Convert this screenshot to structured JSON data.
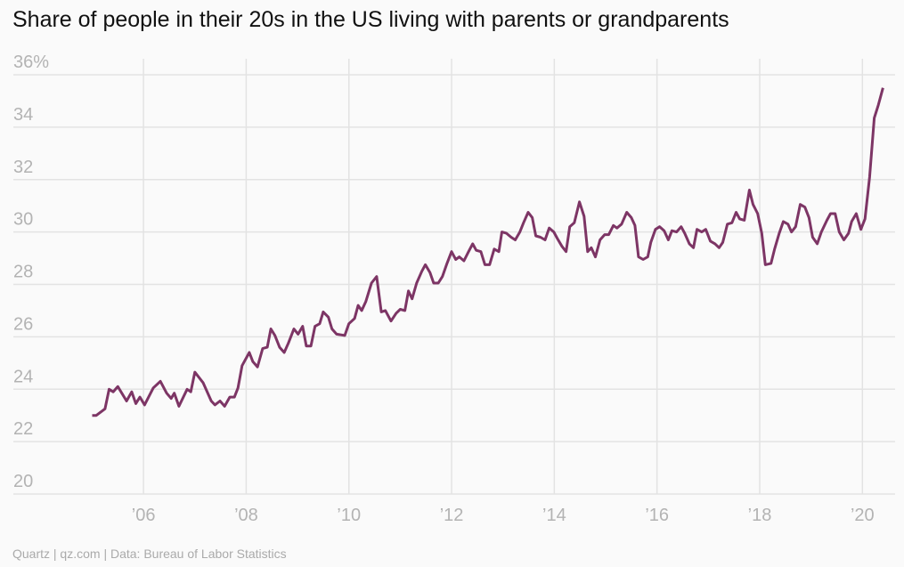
{
  "chart_data": {
    "type": "line",
    "title": "Share of people in their 20s in the US living with parents or grandparents",
    "source": "Quartz | qz.com | Data: Bureau of Labor Statistics",
    "color": "#7d3565",
    "grid": true,
    "xlim": [
      2004.94,
      2020.55
    ],
    "xticks": [
      {
        "value": 2006,
        "label": "’06"
      },
      {
        "value": 2008,
        "label": "’08"
      },
      {
        "value": 2010,
        "label": "’10"
      },
      {
        "value": 2012,
        "label": "’12"
      },
      {
        "value": 2014,
        "label": "’14"
      },
      {
        "value": 2016,
        "label": "’16"
      },
      {
        "value": 2018,
        "label": "’18"
      },
      {
        "value": 2020,
        "label": "’20"
      }
    ],
    "ylim": [
      20,
      36
    ],
    "yticks": [
      20,
      22,
      24,
      26,
      28,
      30,
      32,
      34,
      {
        "value": 36,
        "label": "36%"
      }
    ],
    "x": [
      2005.0,
      2005.08,
      2005.25,
      2005.33,
      2005.41,
      2005.5,
      2005.67,
      2005.77,
      2005.85,
      2005.93,
      2006.02,
      2006.19,
      2006.33,
      2006.45,
      2006.54,
      2006.6,
      2006.69,
      2006.85,
      2006.92,
      2007.0,
      2007.16,
      2007.32,
      2007.39,
      2007.49,
      2007.58,
      2007.68,
      2007.77,
      2007.84,
      2007.92,
      2008.06,
      2008.13,
      2008.22,
      2008.32,
      2008.41,
      2008.48,
      2008.56,
      2008.65,
      2008.74,
      2008.82,
      2008.93,
      2009.01,
      2009.1,
      2009.17,
      2009.26,
      2009.34,
      2009.43,
      2009.5,
      2009.6,
      2009.67,
      2009.76,
      2009.92,
      2010.0,
      2010.11,
      2010.18,
      2010.25,
      2010.33,
      2010.44,
      2010.54,
      2010.63,
      2010.71,
      2010.82,
      2010.92,
      2011.0,
      2011.09,
      2011.16,
      2011.23,
      2011.32,
      2011.42,
      2011.49,
      2011.58,
      2011.65,
      2011.74,
      2011.82,
      2011.91,
      2012.0,
      2012.08,
      2012.15,
      2012.24,
      2012.33,
      2012.41,
      2012.48,
      2012.57,
      2012.65,
      2012.74,
      2012.83,
      2012.92,
      2012.98,
      2013.07,
      2013.16,
      2013.24,
      2013.33,
      2013.4,
      2013.49,
      2013.57,
      2013.64,
      2013.73,
      2013.82,
      2013.9,
      2013.99,
      2014.06,
      2014.15,
      2014.23,
      2014.3,
      2014.39,
      2014.49,
      2014.58,
      2014.65,
      2014.72,
      2014.8,
      2014.89,
      2014.98,
      2015.06,
      2015.15,
      2015.22,
      2015.31,
      2015.41,
      2015.5,
      2015.57,
      2015.64,
      2015.73,
      2015.82,
      2015.88,
      2015.97,
      2016.05,
      2016.14,
      2016.22,
      2016.29,
      2016.38,
      2016.47,
      2016.54,
      2016.63,
      2016.71,
      2016.78,
      2016.87,
      2016.95,
      2017.04,
      2017.13,
      2017.21,
      2017.28,
      2017.37,
      2017.46,
      2017.54,
      2017.61,
      2017.7,
      2017.8,
      2017.87,
      2017.96,
      2018.04,
      2018.11,
      2018.22,
      2018.29,
      2018.38,
      2018.46,
      2018.55,
      2018.62,
      2018.7,
      2018.79,
      2018.88,
      2018.96,
      2019.03,
      2019.12,
      2019.2,
      2019.31,
      2019.38,
      2019.47,
      2019.55,
      2019.64,
      2019.73,
      2019.79,
      2019.88,
      2019.97,
      2020.05,
      2020.14,
      2020.23,
      2020.31,
      2020.4
    ],
    "values": [
      23.0,
      23.0,
      23.25,
      24.0,
      23.9,
      24.1,
      23.55,
      23.9,
      23.45,
      23.7,
      23.4,
      24.05,
      24.3,
      23.85,
      23.65,
      23.85,
      23.35,
      24.0,
      23.9,
      24.65,
      24.25,
      23.55,
      23.4,
      23.55,
      23.35,
      23.7,
      23.7,
      24.05,
      24.9,
      25.4,
      25.05,
      24.85,
      25.55,
      25.6,
      26.3,
      26.05,
      25.6,
      25.4,
      25.75,
      26.3,
      26.1,
      26.4,
      25.65,
      25.65,
      26.4,
      26.5,
      26.95,
      26.75,
      26.3,
      26.1,
      26.05,
      26.5,
      26.7,
      27.2,
      27.0,
      27.35,
      28.05,
      28.3,
      26.95,
      27.0,
      26.6,
      26.9,
      27.05,
      27.0,
      27.75,
      27.45,
      28.05,
      28.5,
      28.75,
      28.45,
      28.05,
      28.05,
      28.3,
      28.8,
      29.25,
      28.95,
      29.05,
      28.9,
      29.25,
      29.55,
      29.3,
      29.25,
      28.75,
      28.75,
      29.35,
      29.25,
      30.0,
      29.95,
      29.8,
      29.7,
      30.0,
      30.35,
      30.75,
      30.55,
      29.85,
      29.8,
      29.7,
      30.15,
      30.0,
      29.75,
      29.45,
      29.25,
      30.2,
      30.35,
      31.15,
      30.6,
      29.25,
      29.4,
      29.05,
      29.7,
      29.9,
      29.9,
      30.25,
      30.15,
      30.3,
      30.75,
      30.55,
      30.25,
      29.05,
      28.95,
      29.05,
      29.6,
      30.1,
      30.2,
      30.05,
      29.7,
      30.05,
      30.0,
      30.2,
      29.95,
      29.55,
      29.4,
      30.1,
      30.0,
      30.1,
      29.65,
      29.55,
      29.4,
      29.6,
      30.3,
      30.35,
      30.75,
      30.5,
      30.45,
      31.6,
      31.05,
      30.7,
      29.95,
      28.75,
      28.8,
      29.35,
      29.95,
      30.4,
      30.3,
      30.0,
      30.2,
      31.05,
      30.95,
      30.55,
      29.8,
      29.55,
      30.0,
      30.45,
      30.7,
      30.7,
      30.0,
      29.7,
      29.95,
      30.4,
      30.7,
      30.1,
      30.5,
      32.1,
      34.35,
      34.85,
      35.5
    ]
  }
}
